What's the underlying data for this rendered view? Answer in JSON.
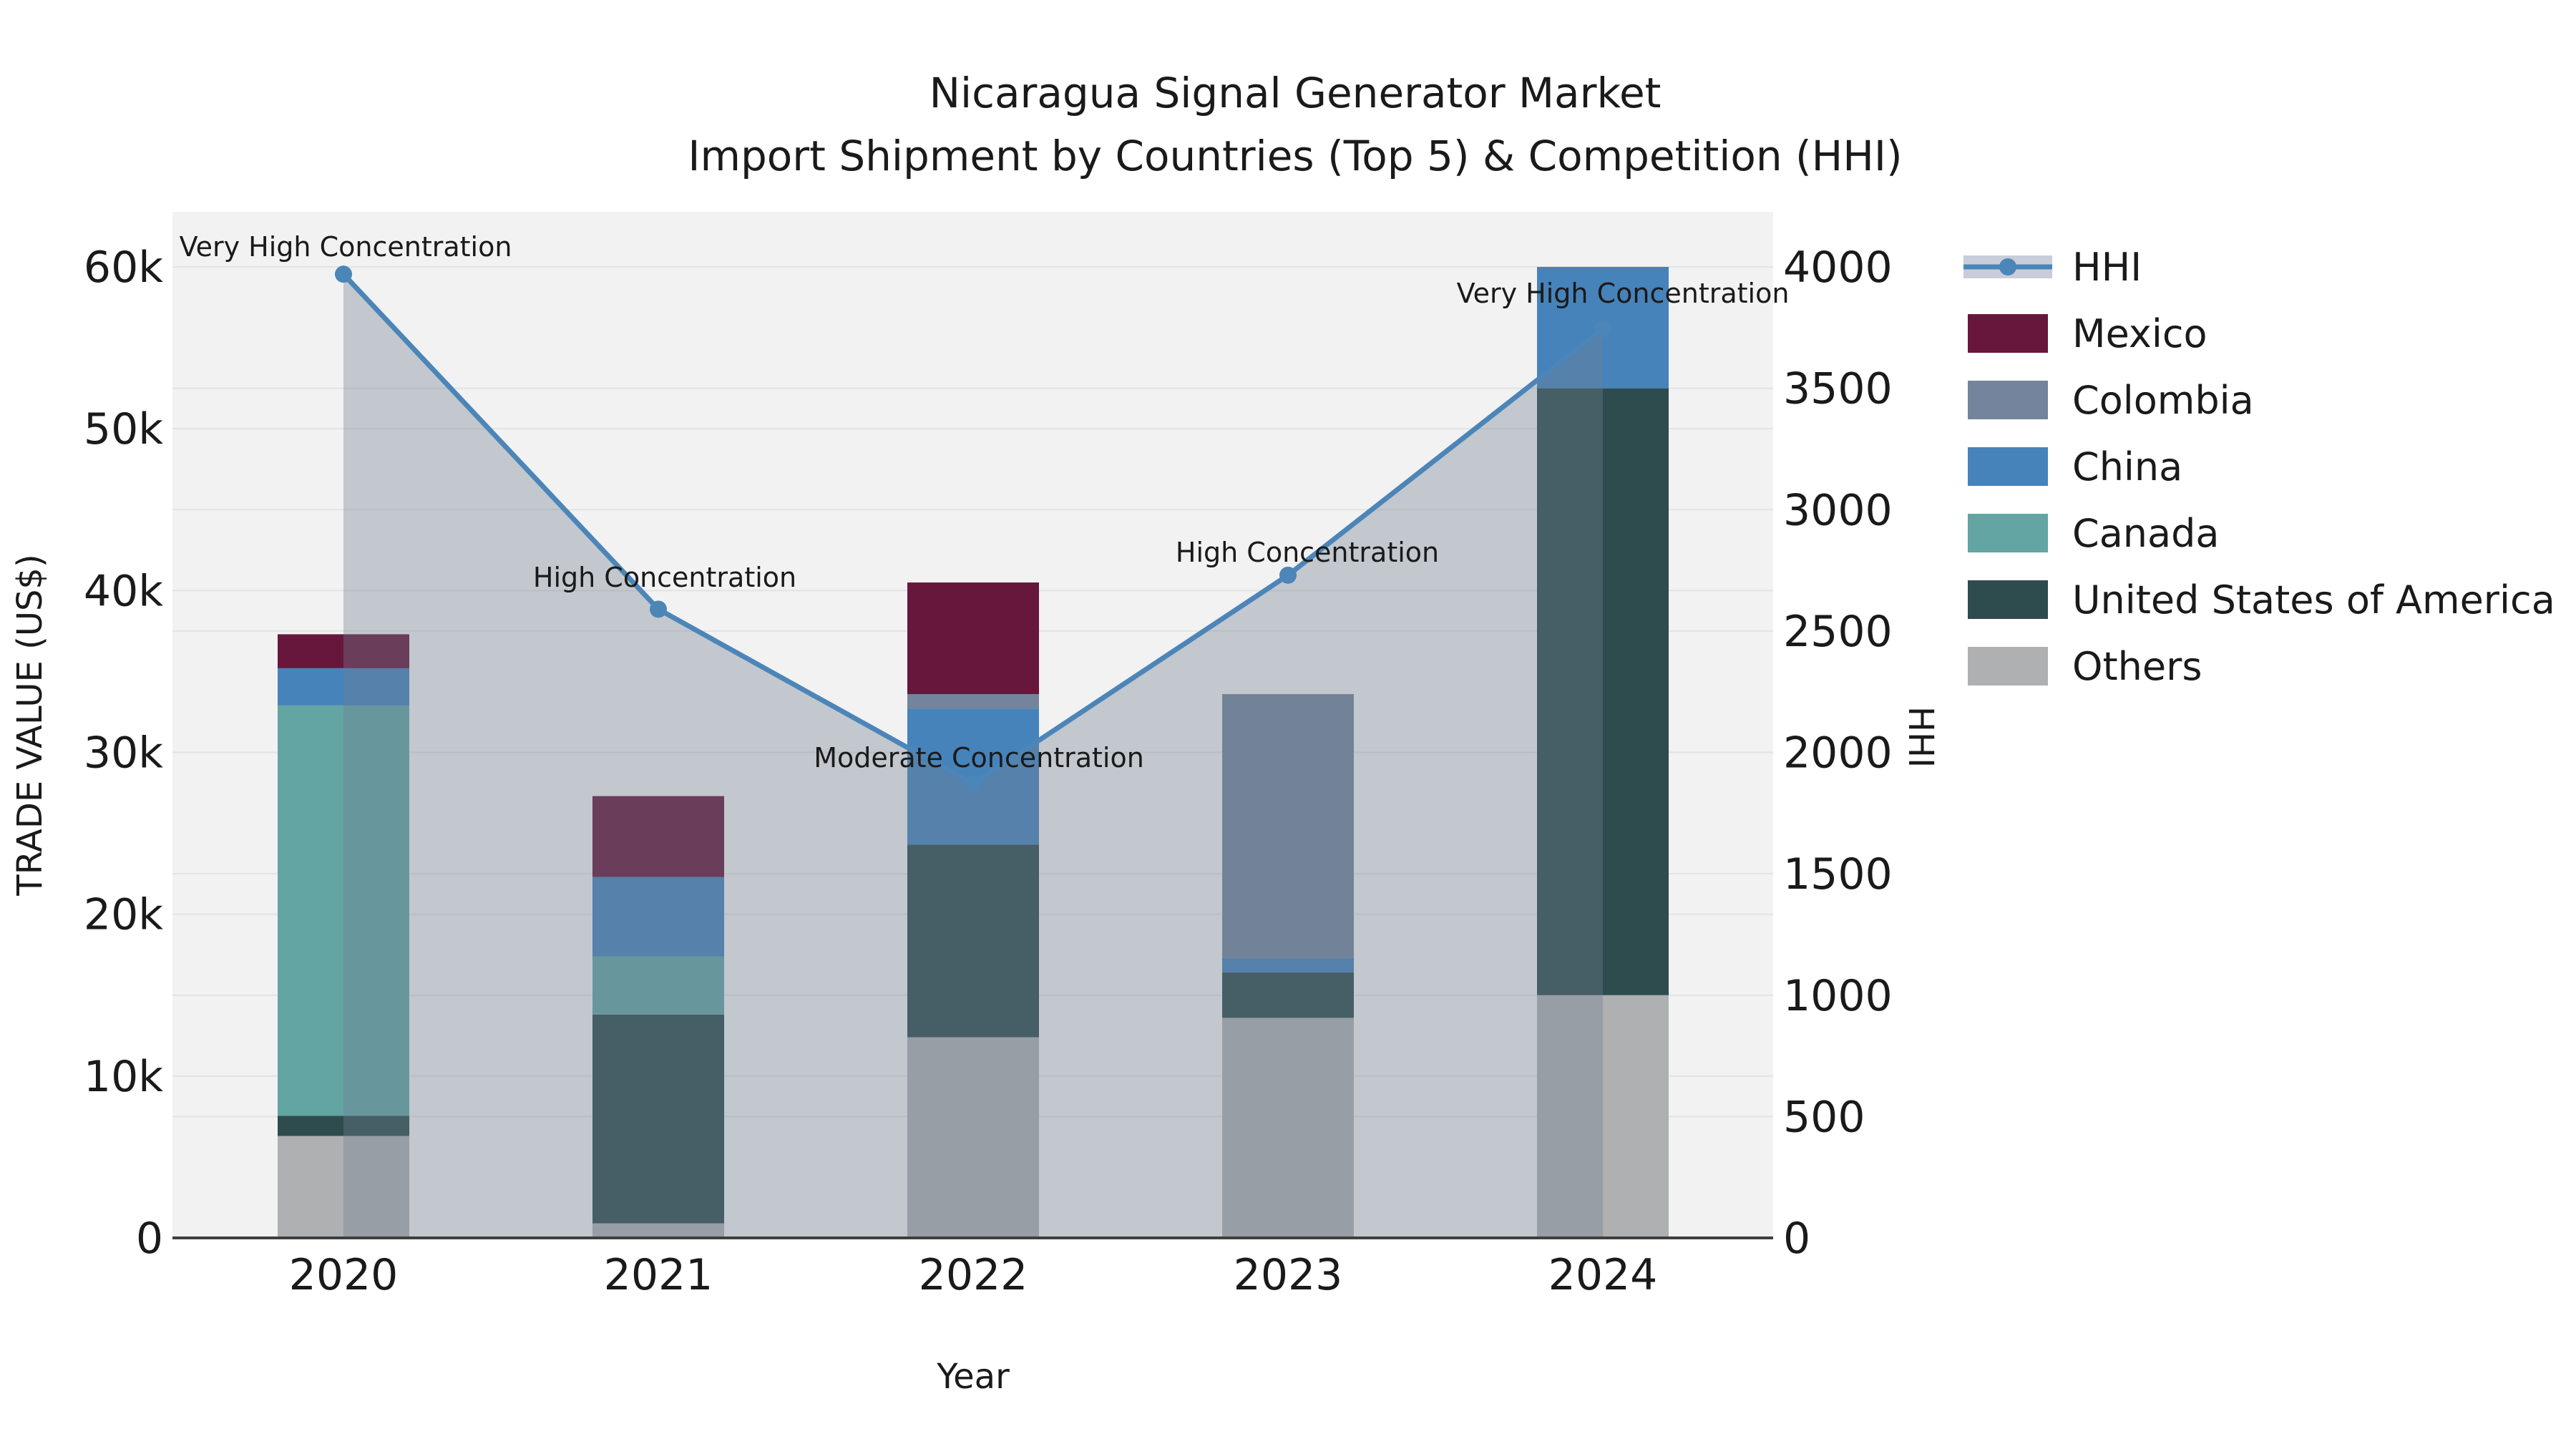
{
  "title": {
    "line1": "Nicaragua Signal Generator Market",
    "line2": "Import Shipment by Countries (Top 5) & Competition (HHI)"
  },
  "axes": {
    "left_label": "TRADE VALUE (US$)",
    "right_label": "HHI",
    "x_label": "Year",
    "left_ticks": [
      {
        "value": 0,
        "label": "0"
      },
      {
        "value": 10000,
        "label": "10k"
      },
      {
        "value": 20000,
        "label": "20k"
      },
      {
        "value": 30000,
        "label": "30k"
      },
      {
        "value": 40000,
        "label": "40k"
      },
      {
        "value": 50000,
        "label": "50k"
      },
      {
        "value": 60000,
        "label": "60k"
      }
    ],
    "right_ticks": [
      {
        "value": 0,
        "label": "0"
      },
      {
        "value": 500,
        "label": "500"
      },
      {
        "value": 1000,
        "label": "1000"
      },
      {
        "value": 1500,
        "label": "1500"
      },
      {
        "value": 2000,
        "label": "2000"
      },
      {
        "value": 2500,
        "label": "2500"
      },
      {
        "value": 3000,
        "label": "3000"
      },
      {
        "value": 3500,
        "label": "3500"
      },
      {
        "value": 4000,
        "label": "4000"
      }
    ],
    "x_ticks": [
      "2020",
      "2021",
      "2022",
      "2023",
      "2024"
    ]
  },
  "legend": {
    "items": [
      {
        "label": "HHI",
        "type": "line",
        "color": "#4C85B8",
        "band_color": "#C7CEDA"
      },
      {
        "label": "Mexico",
        "type": "swatch",
        "color": "#68173C"
      },
      {
        "label": "Colombia",
        "type": "swatch",
        "color": "#74849C"
      },
      {
        "label": "China",
        "type": "swatch",
        "color": "#4683BB"
      },
      {
        "label": "Canada",
        "type": "swatch",
        "color": "#62A5A3"
      },
      {
        "label": "United States of America",
        "type": "swatch",
        "color": "#2E4B4E"
      },
      {
        "label": "Others",
        "type": "swatch",
        "color": "#AEB0B2"
      }
    ]
  },
  "chart_data": {
    "type": "bar",
    "subtype": "stacked-bars-with-line-overlay",
    "title": "Nicaragua Signal Generator Market — Import Shipment by Countries (Top 5) & Competition (HHI)",
    "xlabel": "Year",
    "ylabel_left": "TRADE VALUE (US$)",
    "ylabel_right": "HHI",
    "categories": [
      "2020",
      "2021",
      "2022",
      "2023",
      "2024"
    ],
    "ylim_left": [
      0,
      60000
    ],
    "ylim_right": [
      0,
      4000
    ],
    "stack_order_bottom_to_top": [
      "Others",
      "United States of America",
      "Canada",
      "China",
      "Colombia",
      "Mexico"
    ],
    "series": [
      {
        "name": "Others",
        "color": "#AEB0B2",
        "values": [
          6300,
          900,
          12400,
          13600,
          15000
        ]
      },
      {
        "name": "United States of America",
        "color": "#2E4B4E",
        "values": [
          1250,
          12900,
          11900,
          2800,
          37500
        ]
      },
      {
        "name": "Canada",
        "color": "#62A5A3",
        "values": [
          25350,
          3600,
          0,
          0,
          0
        ]
      },
      {
        "name": "China",
        "color": "#4683BB",
        "values": [
          2300,
          4900,
          8400,
          900,
          7500
        ]
      },
      {
        "name": "Colombia",
        "color": "#74849C",
        "values": [
          0,
          0,
          900,
          16300,
          0
        ]
      },
      {
        "name": "Mexico",
        "color": "#68173C",
        "values": [
          2100,
          5000,
          6900,
          0,
          0
        ]
      }
    ],
    "bar_totals": [
      37300,
      27300,
      40500,
      33600,
      60000
    ],
    "line_series": {
      "name": "HHI",
      "axis": "right",
      "color": "#4C85B8",
      "values": [
        3970,
        2590,
        1870,
        2730,
        3745
      ]
    },
    "area_fill": "rgba(112,128,144,0.37)",
    "annotations": [
      {
        "text": "Very High Concentration",
        "x": 483,
        "y": 358
      },
      {
        "text": "High Concentration",
        "x": 929,
        "y": 820
      },
      {
        "text": "Moderate Concentration",
        "x": 1368,
        "y": 1072
      },
      {
        "text": "High Concentration",
        "x": 1827,
        "y": 785
      },
      {
        "text": "Very High Concentration",
        "x": 2268,
        "y": 423
      }
    ],
    "plot_bg": "#F2F2F2",
    "grid_color": "#E3E3E3",
    "axis_line_color": "#3F3F3F",
    "legend_position": "right",
    "grid": true
  }
}
